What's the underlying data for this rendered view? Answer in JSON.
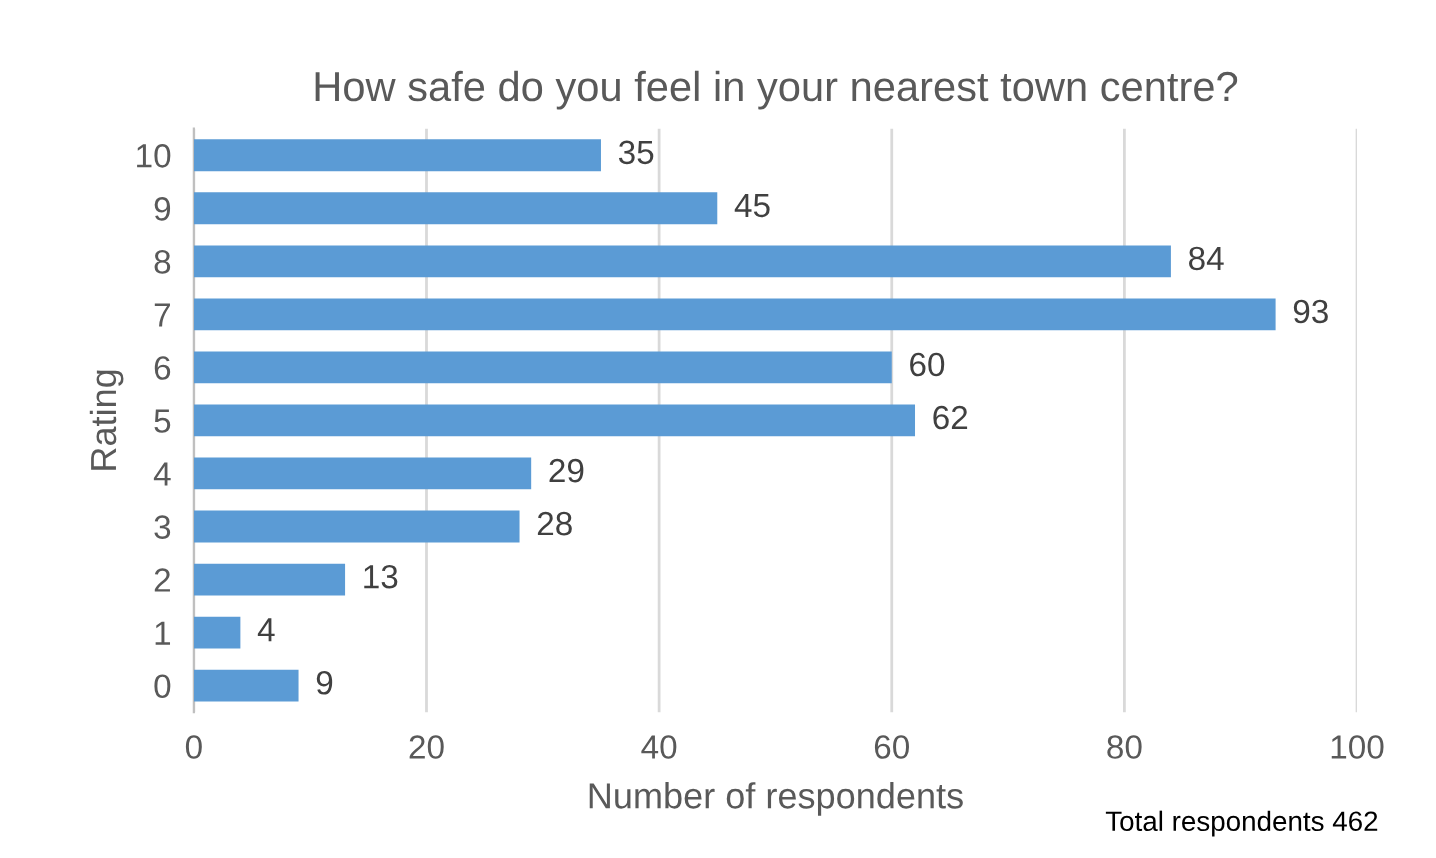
{
  "chart_data": {
    "type": "bar",
    "orientation": "horizontal",
    "title": "How safe do you feel in your nearest town centre?",
    "xlabel": "Number of respondents",
    "ylabel": "Rating",
    "categories": [
      "10",
      "9",
      "8",
      "7",
      "6",
      "5",
      "4",
      "3",
      "2",
      "1",
      "0"
    ],
    "values": [
      35,
      45,
      84,
      93,
      60,
      62,
      29,
      28,
      13,
      4,
      9
    ],
    "color": "#5b9bd5",
    "xlim": [
      0,
      100
    ],
    "xticks": [
      0,
      20,
      40,
      60,
      80,
      100
    ],
    "grid": "x",
    "data_labels": true,
    "legend": false,
    "annotations": [
      "Total respondents 462"
    ]
  }
}
